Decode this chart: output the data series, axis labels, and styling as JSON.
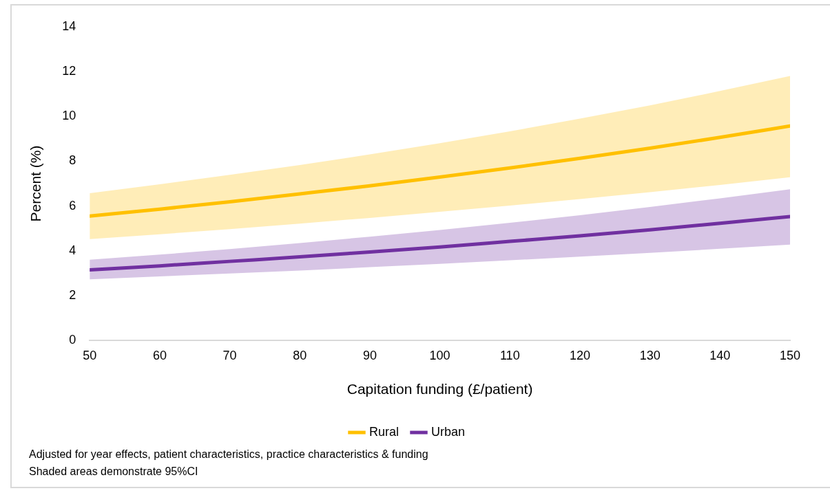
{
  "chart_data": {
    "type": "line",
    "xlabel": "Capitation funding (£/patient)",
    "ylabel": "Percent (%)",
    "x": [
      50,
      60,
      70,
      80,
      90,
      100,
      110,
      120,
      130,
      140,
      150
    ],
    "series": [
      {
        "name": "Rural",
        "color": "#ffc000",
        "values": [
          5.55,
          5.86,
          6.19,
          6.54,
          6.9,
          7.29,
          7.7,
          8.13,
          8.58,
          9.06,
          9.57
        ],
        "lower": [
          4.52,
          4.74,
          4.97,
          5.21,
          5.47,
          5.74,
          6.02,
          6.31,
          6.62,
          6.94,
          7.28
        ],
        "upper": [
          6.57,
          6.97,
          7.39,
          7.83,
          8.3,
          8.8,
          9.33,
          9.9,
          10.49,
          11.13,
          11.8
        ]
      },
      {
        "name": "Urban",
        "color": "#7030a0",
        "values": [
          3.15,
          3.33,
          3.53,
          3.73,
          3.95,
          4.17,
          4.42,
          4.67,
          4.94,
          5.23,
          5.53
        ],
        "lower": [
          2.73,
          2.86,
          2.99,
          3.12,
          3.27,
          3.42,
          3.58,
          3.74,
          3.91,
          4.09,
          4.28
        ],
        "upper": [
          3.6,
          3.83,
          4.08,
          4.35,
          4.63,
          4.93,
          5.25,
          5.59,
          5.96,
          6.34,
          6.75
        ]
      }
    ],
    "xlim": [
      50,
      150
    ],
    "xticks": [
      50,
      60,
      70,
      80,
      90,
      100,
      110,
      120,
      130,
      140,
      150
    ],
    "ylim": [
      0,
      14
    ],
    "yticks": [
      0,
      2,
      4,
      6,
      8,
      10,
      12,
      14
    ],
    "grid": false,
    "legend": "bottom",
    "marker": "none",
    "line_style": "solid",
    "annotations": [
      "Adjusted for year effects, patient characteristics, practice characteristics & funding",
      "Shaded areas demonstrate 95%CI"
    ]
  }
}
